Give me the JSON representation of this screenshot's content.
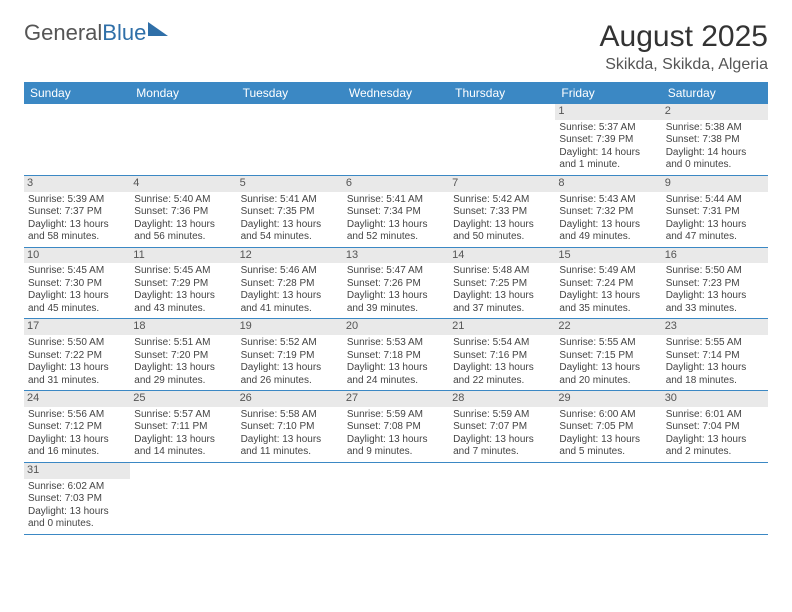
{
  "logo": {
    "part1": "General",
    "part2": "Blue"
  },
  "header": {
    "title": "August 2025",
    "location": "Skikda, Skikda, Algeria"
  },
  "colors": {
    "header_bg": "#3b88c4",
    "header_text": "#ffffff",
    "daynum_bg": "#e9e9e9",
    "row_border": "#3b88c4"
  },
  "calendar": {
    "day_names": [
      "Sunday",
      "Monday",
      "Tuesday",
      "Wednesday",
      "Thursday",
      "Friday",
      "Saturday"
    ],
    "weeks": [
      [
        null,
        null,
        null,
        null,
        null,
        {
          "n": "1",
          "sr": "Sunrise: 5:37 AM",
          "ss": "Sunset: 7:39 PM",
          "dl": "Daylight: 14 hours and 1 minute."
        },
        {
          "n": "2",
          "sr": "Sunrise: 5:38 AM",
          "ss": "Sunset: 7:38 PM",
          "dl": "Daylight: 14 hours and 0 minutes."
        }
      ],
      [
        {
          "n": "3",
          "sr": "Sunrise: 5:39 AM",
          "ss": "Sunset: 7:37 PM",
          "dl": "Daylight: 13 hours and 58 minutes."
        },
        {
          "n": "4",
          "sr": "Sunrise: 5:40 AM",
          "ss": "Sunset: 7:36 PM",
          "dl": "Daylight: 13 hours and 56 minutes."
        },
        {
          "n": "5",
          "sr": "Sunrise: 5:41 AM",
          "ss": "Sunset: 7:35 PM",
          "dl": "Daylight: 13 hours and 54 minutes."
        },
        {
          "n": "6",
          "sr": "Sunrise: 5:41 AM",
          "ss": "Sunset: 7:34 PM",
          "dl": "Daylight: 13 hours and 52 minutes."
        },
        {
          "n": "7",
          "sr": "Sunrise: 5:42 AM",
          "ss": "Sunset: 7:33 PM",
          "dl": "Daylight: 13 hours and 50 minutes."
        },
        {
          "n": "8",
          "sr": "Sunrise: 5:43 AM",
          "ss": "Sunset: 7:32 PM",
          "dl": "Daylight: 13 hours and 49 minutes."
        },
        {
          "n": "9",
          "sr": "Sunrise: 5:44 AM",
          "ss": "Sunset: 7:31 PM",
          "dl": "Daylight: 13 hours and 47 minutes."
        }
      ],
      [
        {
          "n": "10",
          "sr": "Sunrise: 5:45 AM",
          "ss": "Sunset: 7:30 PM",
          "dl": "Daylight: 13 hours and 45 minutes."
        },
        {
          "n": "11",
          "sr": "Sunrise: 5:45 AM",
          "ss": "Sunset: 7:29 PM",
          "dl": "Daylight: 13 hours and 43 minutes."
        },
        {
          "n": "12",
          "sr": "Sunrise: 5:46 AM",
          "ss": "Sunset: 7:28 PM",
          "dl": "Daylight: 13 hours and 41 minutes."
        },
        {
          "n": "13",
          "sr": "Sunrise: 5:47 AM",
          "ss": "Sunset: 7:26 PM",
          "dl": "Daylight: 13 hours and 39 minutes."
        },
        {
          "n": "14",
          "sr": "Sunrise: 5:48 AM",
          "ss": "Sunset: 7:25 PM",
          "dl": "Daylight: 13 hours and 37 minutes."
        },
        {
          "n": "15",
          "sr": "Sunrise: 5:49 AM",
          "ss": "Sunset: 7:24 PM",
          "dl": "Daylight: 13 hours and 35 minutes."
        },
        {
          "n": "16",
          "sr": "Sunrise: 5:50 AM",
          "ss": "Sunset: 7:23 PM",
          "dl": "Daylight: 13 hours and 33 minutes."
        }
      ],
      [
        {
          "n": "17",
          "sr": "Sunrise: 5:50 AM",
          "ss": "Sunset: 7:22 PM",
          "dl": "Daylight: 13 hours and 31 minutes."
        },
        {
          "n": "18",
          "sr": "Sunrise: 5:51 AM",
          "ss": "Sunset: 7:20 PM",
          "dl": "Daylight: 13 hours and 29 minutes."
        },
        {
          "n": "19",
          "sr": "Sunrise: 5:52 AM",
          "ss": "Sunset: 7:19 PM",
          "dl": "Daylight: 13 hours and 26 minutes."
        },
        {
          "n": "20",
          "sr": "Sunrise: 5:53 AM",
          "ss": "Sunset: 7:18 PM",
          "dl": "Daylight: 13 hours and 24 minutes."
        },
        {
          "n": "21",
          "sr": "Sunrise: 5:54 AM",
          "ss": "Sunset: 7:16 PM",
          "dl": "Daylight: 13 hours and 22 minutes."
        },
        {
          "n": "22",
          "sr": "Sunrise: 5:55 AM",
          "ss": "Sunset: 7:15 PM",
          "dl": "Daylight: 13 hours and 20 minutes."
        },
        {
          "n": "23",
          "sr": "Sunrise: 5:55 AM",
          "ss": "Sunset: 7:14 PM",
          "dl": "Daylight: 13 hours and 18 minutes."
        }
      ],
      [
        {
          "n": "24",
          "sr": "Sunrise: 5:56 AM",
          "ss": "Sunset: 7:12 PM",
          "dl": "Daylight: 13 hours and 16 minutes."
        },
        {
          "n": "25",
          "sr": "Sunrise: 5:57 AM",
          "ss": "Sunset: 7:11 PM",
          "dl": "Daylight: 13 hours and 14 minutes."
        },
        {
          "n": "26",
          "sr": "Sunrise: 5:58 AM",
          "ss": "Sunset: 7:10 PM",
          "dl": "Daylight: 13 hours and 11 minutes."
        },
        {
          "n": "27",
          "sr": "Sunrise: 5:59 AM",
          "ss": "Sunset: 7:08 PM",
          "dl": "Daylight: 13 hours and 9 minutes."
        },
        {
          "n": "28",
          "sr": "Sunrise: 5:59 AM",
          "ss": "Sunset: 7:07 PM",
          "dl": "Daylight: 13 hours and 7 minutes."
        },
        {
          "n": "29",
          "sr": "Sunrise: 6:00 AM",
          "ss": "Sunset: 7:05 PM",
          "dl": "Daylight: 13 hours and 5 minutes."
        },
        {
          "n": "30",
          "sr": "Sunrise: 6:01 AM",
          "ss": "Sunset: 7:04 PM",
          "dl": "Daylight: 13 hours and 2 minutes."
        }
      ],
      [
        {
          "n": "31",
          "sr": "Sunrise: 6:02 AM",
          "ss": "Sunset: 7:03 PM",
          "dl": "Daylight: 13 hours and 0 minutes."
        },
        null,
        null,
        null,
        null,
        null,
        null
      ]
    ]
  }
}
